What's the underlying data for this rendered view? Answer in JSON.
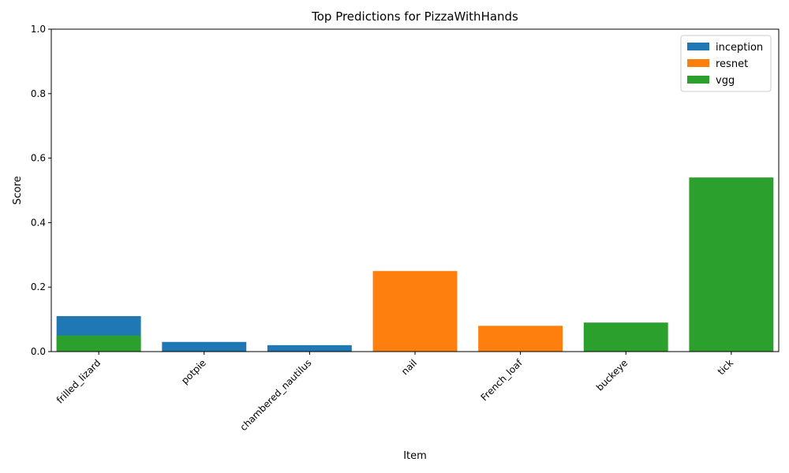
{
  "chart_data": {
    "type": "bar",
    "title": "Top Predictions for PizzaWithHands",
    "xlabel": "Item",
    "ylabel": "Score",
    "ylim": [
      0,
      1.0
    ],
    "yticks": [
      "0.0",
      "0.2",
      "0.4",
      "0.6",
      "0.8",
      "1.0"
    ],
    "categories": [
      "frilled_lizard",
      "potpie",
      "chambered_nautilus",
      "nail",
      "French_loaf",
      "buckeye",
      "tick"
    ],
    "legend_position": "top-right",
    "grid": false,
    "series": [
      {
        "name": "inception",
        "color": "#1f77b4",
        "values": [
          0.11,
          0.03,
          0.02,
          null,
          null,
          null,
          null
        ]
      },
      {
        "name": "resnet",
        "color": "#ff7f0e",
        "values": [
          null,
          null,
          null,
          0.25,
          0.08,
          null,
          null
        ]
      },
      {
        "name": "vgg",
        "color": "#2ca02c",
        "values": [
          0.05,
          null,
          null,
          null,
          null,
          0.09,
          0.54
        ]
      }
    ]
  }
}
